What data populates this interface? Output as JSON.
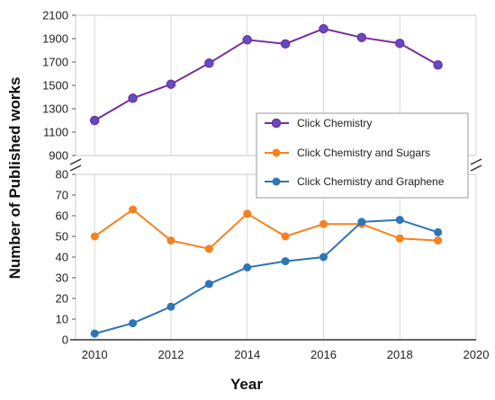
{
  "chart_data": {
    "type": "line",
    "title": "",
    "xlabel": "Year",
    "ylabel": "Number of Published works",
    "x": [
      2010,
      2011,
      2012,
      2013,
      2014,
      2015,
      2016,
      2017,
      2018,
      2019
    ],
    "x_ticks": [
      "2010",
      "2012",
      "2014",
      "2016",
      "2018",
      "2020"
    ],
    "xlim": [
      2009.5,
      2020
    ],
    "broken_y_axis": true,
    "upper_panel": {
      "ylim": [
        900,
        2100
      ],
      "y_ticks": [
        "900",
        "1100",
        "1300",
        "1500",
        "1700",
        "1900",
        "2100"
      ]
    },
    "lower_panel": {
      "ylim": [
        0,
        80
      ],
      "y_ticks": [
        "0",
        "10",
        "20",
        "30",
        "40",
        "50",
        "60",
        "70",
        "80"
      ]
    },
    "grid": "vertical",
    "legend_position": "upper-right of lower panel",
    "series": [
      {
        "name": "Click Chemistry",
        "panel": "upper",
        "color": "#7a2e9b",
        "marker_color": "#5a4fc8",
        "values": [
          1200,
          1390,
          1510,
          1690,
          1890,
          1855,
          1985,
          1910,
          1860,
          1675
        ]
      },
      {
        "name": "Click Chemistry and Sugars",
        "panel": "lower",
        "color": "#f58220",
        "marker_color": "#f58220",
        "values": [
          50,
          63,
          48,
          44,
          61,
          50,
          56,
          56,
          49,
          48
        ]
      },
      {
        "name": "Click Chemistry and Graphene",
        "panel": "lower",
        "color": "#2e75b6",
        "marker_color": "#2e75b6",
        "values": [
          3,
          8,
          16,
          27,
          35,
          38,
          40,
          57,
          58,
          52
        ]
      }
    ]
  }
}
